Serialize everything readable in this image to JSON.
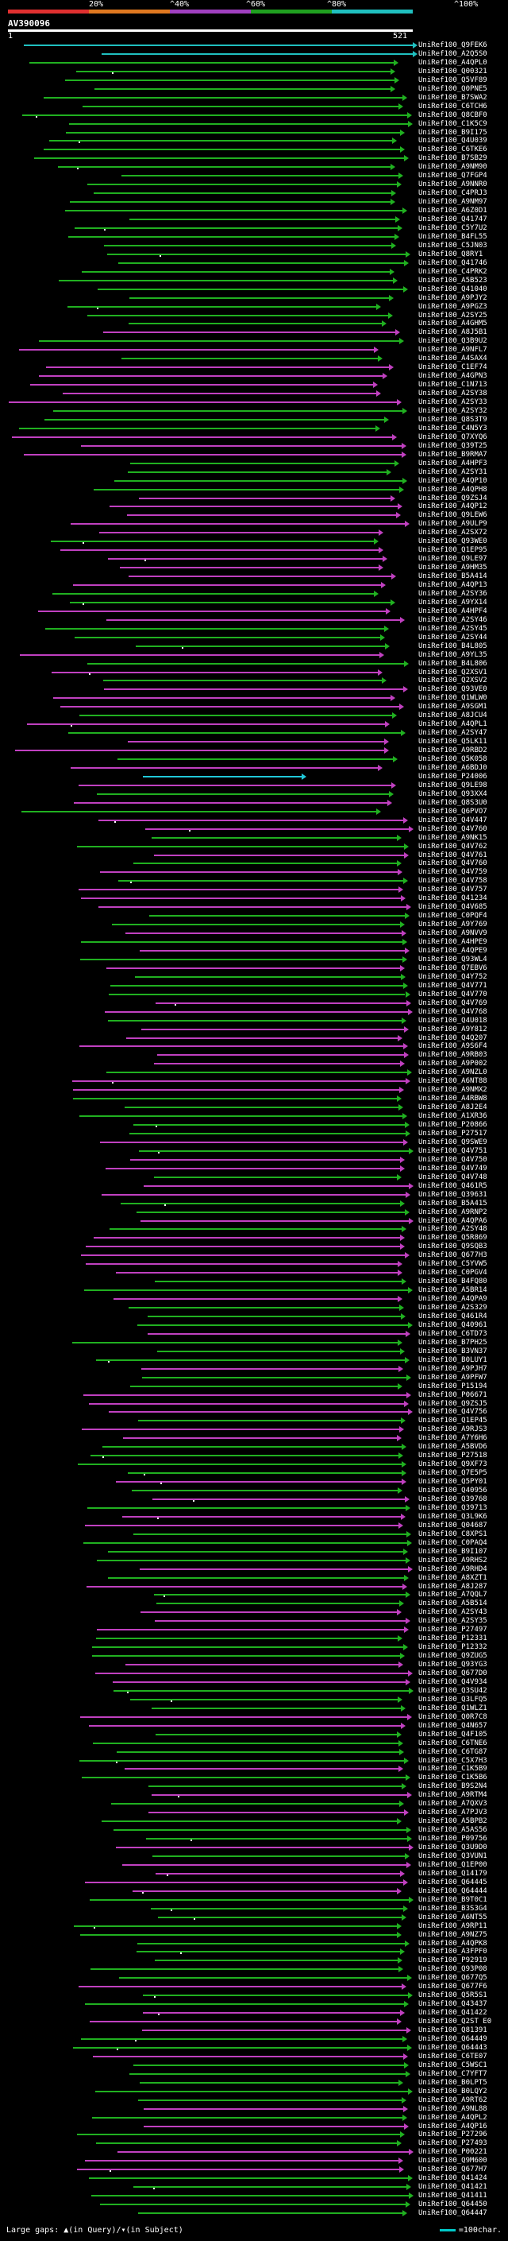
{
  "scale": {
    "labels": [
      "20%",
      "^40%",
      "^60%",
      "^80%",
      "^100%"
    ],
    "colors": [
      "#e03030",
      "#e07820",
      "#a040c0",
      "#20a020",
      "#20c0c0"
    ]
  },
  "query": {
    "name": "AV390096",
    "start": "1",
    "end": "521"
  },
  "colors": {
    "magenta": "#c040c0",
    "green": "#20b020",
    "cyan": "#20c0c0",
    "cyan_bright": "#20c8d8"
  },
  "hits": [
    "UniRef100_Q9FEK6",
    "UniRef100_A2Q5S0",
    "UniRef100_A4QPL0",
    "UniRef100_Q00321",
    "UniRef100_Q5VF89",
    "UniRef100_Q0PNE5",
    "UniRef100_B7SWA2",
    "UniRef100_C6TCH6",
    "UniRef100_Q8CBF0",
    "UniRef100_C1K5C9",
    "UniRef100_B9I175",
    "UniRef100_Q4U039",
    "UniRef100_C6TKE6",
    "UniRef100_B7SB29",
    "UniRef100_A9NM90",
    "UniRef100_Q7FGP4",
    "UniRef100_A9NNR0",
    "UniRef100_C4PRJ3",
    "UniRef100_A9NM97",
    "UniRef100_A6Z0D1",
    "UniRef100_Q41747",
    "UniRef100_C5Y7U2",
    "UniRef100_B4FL55",
    "UniRef100_C5JN03",
    "UniRef100_Q8RY1",
    "UniRef100_Q41746",
    "UniRef100_C4PRK2",
    "UniRef100_A5B523",
    "UniRef100_Q41040",
    "UniRef100_A9PJY2",
    "UniRef100_A9PGZ3",
    "UniRef100_A2SY25",
    "UniRef100_A4GHM5",
    "UniRef100_A8J5B1",
    "UniRef100_Q3B9U2",
    "UniRef100_A9NFL7",
    "UniRef100_A4SAX4",
    "UniRef100_C1EF74",
    "UniRef100_A4GPN3",
    "UniRef100_C1N713",
    "UniRef100_A2SY38",
    "UniRef100_A2SY33",
    "UniRef100_A2SY32",
    "UniRef100_Q8S3T9",
    "UniRef100_C4N5Y3",
    "UniRef100_Q7XYQ6",
    "UniRef100_Q39T25",
    "UniRef100_B9RMA7",
    "UniRef100_A4HPF3",
    "UniRef100_A2SY31",
    "UniRef100_A4QP10",
    "UniRef100_A4QPH8",
    "UniRef100_Q9ZSJ4",
    "UniRef100_A4QP12",
    "UniRef100_Q9LEW6",
    "UniRef100_A9ULP9",
    "UniRef100_A2SX72",
    "UniRef100_Q93WE0",
    "UniRef100_Q1EP95",
    "UniRef100_Q9LE97",
    "UniRef100_A9HM35",
    "UniRef100_B5A414",
    "UniRef100_A4QP13",
    "UniRef100_A2SY36",
    "UniRef100_A9YX14",
    "UniRef100_A4HPF4",
    "UniRef100_A2SY46",
    "UniRef100_A2SY45",
    "UniRef100_A2SY44",
    "UniRef100_B4L805",
    "UniRef100_A9YL35",
    "UniRef100_B4L806",
    "UniRef100_Q2XSV1",
    "UniRef100_Q2XSV2",
    "UniRef100_Q93VE0",
    "UniRef100_Q1WLW0",
    "UniRef100_A9SGM1",
    "UniRef100_A8JCU4",
    "UniRef100_A4QPL1",
    "UniRef100_A2SY47",
    "UniRef100_Q5LK11",
    "UniRef100_A9RBD2",
    "UniRef100_Q5K058",
    "UniRef100_A6BDJ0",
    "UniRef100_P24006",
    "UniRef100_Q9LE98",
    "UniRef100_Q93XX4",
    "UniRef100_Q8S3U0",
    "UniRef100_Q6PVO7",
    "UniRef100_Q4V447",
    "UniRef100_Q4V760",
    "UniRef100_A9NK15",
    "UniRef100_Q4V762",
    "UniRef100_Q4V761",
    "UniRef100_Q4V760",
    "UniRef100_Q4V759",
    "UniRef100_Q4V758",
    "UniRef100_Q4V757",
    "UniRef100_Q41234",
    "UniRef100_Q4V685",
    "UniRef100_C0PQF4",
    "UniRef100_A9Y769",
    "UniRef100_A9NVV9",
    "UniRef100_A4HPE9",
    "UniRef100_A4QPE9",
    "UniRef100_Q93WL4",
    "UniRef100_Q7EBV6",
    "UniRef100_Q4Y752",
    "UniRef100_Q4V771",
    "UniRef100_Q4V770",
    "UniRef100_Q4V769",
    "UniRef100_Q4V768",
    "UniRef100_Q4U018",
    "UniRef100_A9Y812",
    "UniRef100_Q4Q207",
    "UniRef100_A9S6F4",
    "UniRef100_A9RB03",
    "UniRef100_A9P002",
    "UniRef100_A9NZL0",
    "UniRef100_A6NT88",
    "UniRef100_A9NMX2",
    "UniRef100_A4RBW8",
    "UniRef100_A8J2E4",
    "UniRef100_A1XR36",
    "UniRef100_P20866",
    "UniRef100_P27517",
    "UniRef100_Q9SWE9",
    "UniRef100_Q4V751",
    "UniRef100_Q4V750",
    "UniRef100_Q4V749",
    "UniRef100_Q4V748",
    "UniRef100_Q461R5",
    "UniRef100_Q39631",
    "UniRef100_B5A415",
    "UniRef100_A9RNP2",
    "UniRef100_A4QPA6",
    "UniRef100_A2SY48",
    "UniRef100_Q5R869",
    "UniRef100_Q9SQB3",
    "UniRef100_Q677H3",
    "UniRef100_C5YVW5",
    "UniRef100_C0PGV4",
    "UniRef100_B4FQ80",
    "UniRef100_A5BR14",
    "UniRef100_A4QPA9",
    "UniRef100_A2S329",
    "UniRef100_Q461R4",
    "UniRef100_Q40961",
    "UniRef100_C6TD73",
    "UniRef100_B7PH25",
    "UniRef100_B3VN37",
    "UniRef100_B0LUY1",
    "UniRef100_A9PJH7",
    "UniRef100_A9PFW7",
    "UniRef100_P15194",
    "UniRef100_P06671",
    "UniRef100_Q9ZSJ5",
    "UniRef100_Q4V756",
    "UniRef100_Q1EP45",
    "UniRef100_A9RJS3",
    "UniRef100_A7Y6H6",
    "UniRef100_A5BVD6",
    "UniRef100_P27518",
    "UniRef100_Q9XF73",
    "UniRef100_Q7E5P5",
    "UniRef100_Q5PY01",
    "UniRef100_Q40956",
    "UniRef100_Q39768",
    "UniRef100_Q39713",
    "UniRef100_Q3L9K6",
    "UniRef100_Q04687",
    "UniRef100_C8XPS1",
    "UniRef100_C0PAQ4",
    "UniRef100_B9I107",
    "UniRef100_A9RHS2",
    "UniRef100_A9RHD4",
    "UniRef100_A8XZT1",
    "UniRef100_A8J287",
    "UniRef100_A7QQL7",
    "UniRef100_A5B514",
    "UniRef100_A2SY43",
    "UniRef100_A2SY35",
    "UniRef100_P27497",
    "UniRef100_P12331",
    "UniRef100_P12332",
    "UniRef100_Q9ZUG5",
    "UniRef100_Q93YG3",
    "UniRef100_Q677D0",
    "UniRef100_Q4V934",
    "UniRef100_Q3SU42",
    "UniRef100_Q3LFQ5",
    "UniRef100_Q1WLZ1",
    "UniRef100_Q0R7C8",
    "UniRef100_Q4N657",
    "UniRef100_Q4F105",
    "UniRef100_C6TNE6",
    "UniRef100_C6TG87",
    "UniRef100_C5X7H3",
    "UniRef100_C1K5B9",
    "UniRef100_C1K5B6",
    "UniRef100_B9S2N4",
    "UniRef100_A9RTM4",
    "UniRef100_A7QXV3",
    "UniRef100_A7PJV3",
    "UniRef100_A5BPB2",
    "UniRef100_A5AS56",
    "UniRef100_P09756",
    "UniRef100_Q3U9D0",
    "UniRef100_Q3VUN1",
    "UniRef100_Q1EP00",
    "UniRef100_Q14179",
    "UniRef100_Q64445",
    "UniRef100_Q64444",
    "UniRef100_B9T0C1",
    "UniRef100_B3S3G4",
    "UniRef100_A6NT55",
    "UniRef100_A9RP11",
    "UniRef100_A9NZ75",
    "UniRef100_A4QPK8",
    "UniRef100_A3FPF0",
    "UniRef100_P92919",
    "UniRef100_Q93P08",
    "UniRef100_Q677Q5",
    "UniRef100_Q677F6",
    "UniRef100_Q5R5S1",
    "UniRef100_Q43437",
    "UniRef100_Q41422",
    "UniRef100_Q2ST E0",
    "UniRef100_Q81391",
    "UniRef100_Q64449",
    "UniRef100_Q64443",
    "UniRef100_C6TE07",
    "UniRef100_C5WSC1",
    "UniRef100_C7YFT7",
    "UniRef100_B0LPT5",
    "UniRef100_B0LQY2",
    "UniRef100_A9RT62",
    "UniRef100_A9NL88",
    "UniRef100_A4QPL2",
    "UniRef100_A4QP16",
    "UniRef100_P27296",
    "UniRef100_P27493",
    "UniRef100_P00221",
    "UniRef100_Q9M600",
    "UniRef100_Q677H7",
    "UniRef100_Q41424",
    "UniRef100_Q41421",
    "UniRef100_Q41411",
    "UniRef100_Q64450",
    "UniRef100_Q64447"
  ],
  "footer": {
    "left": "Large gaps: ▲(in Query)/▾(in Subject)",
    "right": "=100char."
  }
}
